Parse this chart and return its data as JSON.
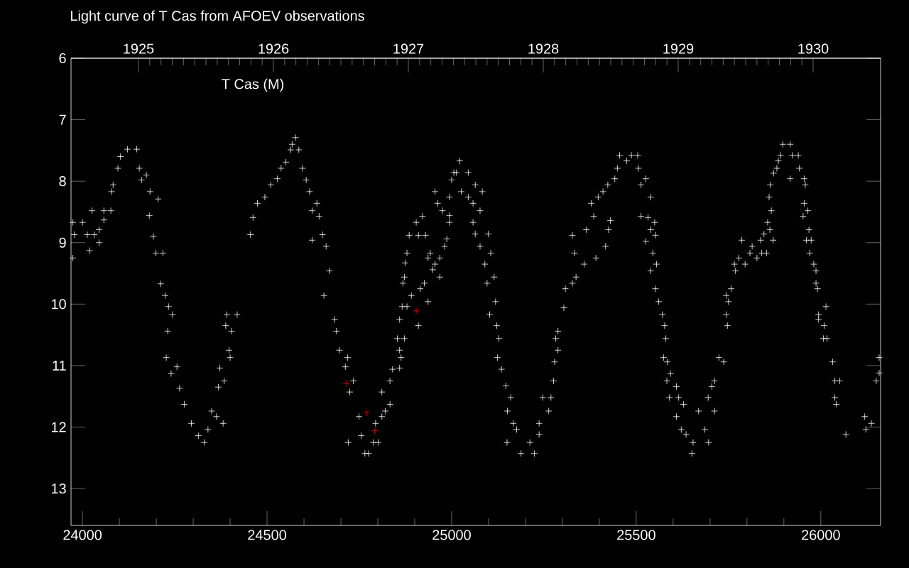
{
  "chart_data": {
    "type": "scatter",
    "title": "Light curve of T Cas from AFOEV observations",
    "annotations": [
      "T Cas (M)"
    ],
    "marker": "cross",
    "xlim": [
      23969,
      26162
    ],
    "ylim": [
      13.6,
      6
    ],
    "xticks": [
      24000,
      24500,
      25000,
      25500,
      26000
    ],
    "yticks": [
      6,
      7,
      8,
      9,
      10,
      11,
      12,
      13
    ],
    "x2lim": [
      1924.5,
      1930.5
    ],
    "x2ticks": [
      1925,
      1926,
      1927,
      1928,
      1929,
      1930
    ],
    "series": [
      {
        "color": "#ffffff",
        "x": [
          23974,
          23974,
          23978,
          24000,
          24013,
          24019,
          24032,
          24026,
          24045,
          24045,
          24058,
          24058,
          24077,
          24079,
          24083,
          24096,
          24103,
          24122,
          24147,
          24154,
          24160,
          24173,
          24183,
          24181,
          24192,
          24205,
          24199,
          24218,
          24212,
          24224,
          24233,
          24244,
          24231,
          24227,
          24240,
          24256,
          24263,
          24276,
          24295,
          24314,
          24330,
          24340,
          24350,
          24363,
          24381,
          24368,
          24384,
          24372,
          24397,
          24400,
          24388,
          24391,
          24404,
          24419,
          24455,
          24462,
          24474,
          24494,
          24510,
          24528,
          24538,
          24551,
          24564,
          24568,
          24577,
          24586,
          24596,
          24606,
          24615,
          24622,
          24635,
          24641,
          24622,
          24650,
          24660,
          24669,
          24654,
          24683,
          24688,
          24696,
          24712,
          24718,
          24724,
          24734,
          24720,
          24749,
          24755,
          24765,
          24775,
          24788,
          24801,
          24794,
          24811,
          24820,
          24833,
          24811,
          24833,
          24840,
          24859,
          24863,
          24859,
          24853,
          24872,
          24859,
          24866,
          24879,
          24891,
          24910,
          24868,
          24872,
          24874,
          24879,
          24885,
          24910,
          24929,
          24904,
          24921,
          24915,
          24936,
          24926,
          24936,
          24942,
          24949,
          24955,
          24968,
          24968,
          24981,
          24987,
          24994,
          24994,
          24975,
          24962,
          24955,
          24994,
          25000,
          25013,
          25006,
          25022,
          25026,
          25045,
          25064,
          25083,
          25045,
          25058,
          25077,
          25058,
          25064,
          25099,
          25077,
          25106,
          25090,
          25115,
          25096,
          25119,
          25103,
          25122,
          25128,
          25124,
          25135,
          25147,
          25160,
          25151,
          25167,
          25150,
          25176,
          25188,
          25212,
          25224,
          25237,
          25237,
          25263,
          25247,
          25269,
          25276,
          25279,
          25288,
          25282,
          25288,
          25304,
          25308,
          25327,
          25337,
          25333,
          25359,
          25391,
          25327,
          25365,
          25385,
          25378,
          25397,
          25410,
          25423,
          25417,
          25430,
          25425,
          25442,
          25449,
          25455,
          25474,
          25487,
          25504,
          25506,
          25526,
          25513,
          25539,
          25513,
          25532,
          25550,
          25539,
          25552,
          25526,
          25545,
          25555,
          25539,
          25552,
          25561,
          25571,
          25577,
          25580,
          25574,
          25584,
          25593,
          25583,
          25609,
          25590,
          25615,
          25628,
          25609,
          25622,
          25635,
          25654,
          25651,
          25686,
          25696,
          25669,
          25695,
          25712,
          25705,
          25712,
          25724,
          25737,
          25744,
          25747,
          25744,
          25750,
          25757,
          25769,
          25766,
          25778,
          25786,
          25795,
          25808,
          25814,
          25827,
          25840,
          25853,
          25837,
          25846,
          25862,
          25871,
          25856,
          25866,
          25860,
          25863,
          25872,
          25881,
          25885,
          25891,
          25897,
          25917,
          25923,
          25939,
          25917,
          25942,
          25955,
          25958,
          25955,
          25965,
          25952,
          25968,
          25961,
          25974,
          25970,
          25981,
          25987,
          25987,
          25991,
          26014,
          25994,
          25994,
          26009,
          26007,
          26017,
          26032,
          26038,
          26051,
          26038,
          26042,
          26068,
          26119,
          26122,
          26137,
          26150,
          26158,
          26158
        ],
        "values": [
          8.67,
          9.25,
          8.87,
          8.67,
          8.87,
          9.13,
          8.87,
          8.48,
          9.0,
          8.79,
          8.63,
          8.48,
          8.48,
          8.17,
          8.06,
          7.79,
          7.6,
          7.48,
          7.48,
          7.79,
          7.98,
          7.9,
          8.17,
          8.56,
          8.9,
          8.29,
          9.17,
          9.17,
          9.67,
          9.86,
          10.04,
          10.17,
          10.44,
          10.87,
          11.13,
          11.02,
          11.37,
          11.63,
          11.94,
          12.14,
          12.25,
          12.04,
          11.74,
          11.83,
          11.94,
          11.35,
          11.25,
          11.04,
          10.75,
          10.87,
          10.35,
          10.17,
          10.44,
          10.17,
          8.87,
          8.59,
          8.36,
          8.26,
          8.06,
          7.96,
          7.79,
          7.69,
          7.49,
          7.4,
          7.29,
          7.49,
          7.79,
          7.98,
          8.17,
          8.48,
          8.36,
          8.57,
          8.96,
          8.87,
          9.06,
          9.46,
          9.86,
          10.25,
          10.44,
          10.75,
          11.02,
          10.87,
          11.43,
          11.25,
          12.25,
          11.83,
          12.14,
          12.43,
          12.43,
          12.25,
          12.25,
          11.94,
          11.83,
          11.74,
          11.63,
          11.43,
          11.25,
          11.06,
          10.75,
          10.87,
          11.04,
          10.56,
          10.56,
          10.25,
          10.04,
          10.04,
          9.86,
          10.35,
          9.66,
          9.56,
          9.33,
          9.17,
          8.88,
          8.88,
          8.88,
          8.67,
          8.57,
          9.75,
          9.96,
          9.66,
          9.25,
          9.17,
          9.44,
          9.35,
          9.56,
          9.25,
          9.06,
          8.94,
          8.67,
          8.56,
          8.48,
          8.36,
          8.17,
          8.26,
          7.98,
          7.86,
          7.86,
          7.67,
          8.17,
          7.86,
          8.06,
          8.17,
          8.26,
          8.36,
          8.48,
          8.67,
          8.86,
          8.86,
          9.06,
          9.17,
          9.35,
          9.56,
          9.66,
          9.96,
          10.17,
          10.35,
          10.56,
          10.87,
          11.06,
          11.33,
          11.52,
          11.74,
          11.94,
          12.25,
          12.04,
          12.43,
          12.25,
          12.43,
          11.94,
          12.12,
          11.74,
          11.52,
          11.52,
          11.25,
          10.94,
          10.75,
          10.56,
          10.44,
          10.06,
          9.75,
          9.66,
          9.56,
          9.17,
          9.35,
          9.25,
          8.88,
          8.79,
          8.57,
          8.36,
          8.26,
          8.17,
          8.06,
          9.06,
          8.64,
          8.79,
          7.96,
          7.79,
          7.58,
          7.67,
          7.58,
          7.58,
          7.79,
          7.96,
          8.06,
          8.26,
          8.57,
          8.59,
          8.67,
          8.79,
          8.88,
          8.98,
          9.17,
          9.35,
          9.46,
          9.75,
          9.96,
          10.17,
          10.35,
          10.56,
          10.87,
          10.94,
          11.13,
          11.25,
          11.34,
          11.52,
          11.52,
          11.63,
          11.83,
          12.04,
          12.12,
          12.25,
          12.43,
          12.04,
          12.25,
          11.74,
          11.52,
          11.74,
          11.34,
          11.25,
          10.87,
          10.94,
          10.17,
          10.35,
          9.86,
          9.96,
          9.75,
          9.46,
          9.35,
          9.25,
          8.96,
          9.35,
          9.17,
          9.06,
          9.25,
          9.17,
          9.17,
          8.96,
          8.86,
          8.79,
          8.96,
          8.67,
          8.48,
          8.26,
          8.06,
          7.87,
          7.79,
          7.67,
          7.58,
          7.4,
          7.4,
          7.58,
          7.58,
          7.96,
          7.79,
          7.96,
          8.06,
          8.36,
          8.48,
          8.57,
          8.79,
          8.96,
          8.96,
          9.17,
          9.35,
          9.46,
          9.66,
          9.75,
          10.04,
          10.17,
          10.25,
          10.35,
          10.56,
          10.56,
          10.94,
          11.25,
          11.25,
          11.52,
          11.63,
          12.12,
          11.83,
          12.04,
          11.94,
          11.25,
          11.12,
          10.87
        ]
      },
      {
        "color": "#ff0000",
        "x": [
          24714,
          24769,
          24792,
          24904
        ],
        "values": [
          11.29,
          11.77,
          12.06,
          10.11
        ]
      }
    ]
  }
}
